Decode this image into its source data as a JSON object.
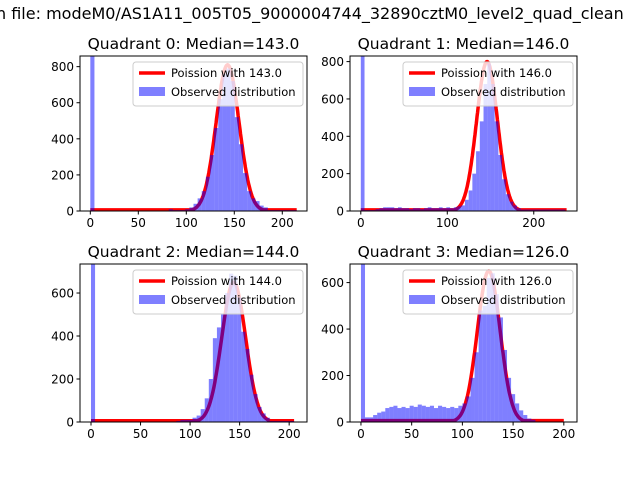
{
  "chart_data": {
    "type": "bar",
    "suptitle": "n file: modeM0/AS1A11_005T05_9000004744_32890cztM0_level2_quad_clean",
    "colors": {
      "observed": "#0000ff",
      "poisson": "#ff0000"
    },
    "legend": {
      "placement": "top-right",
      "poisson_prefix": "Poission with ",
      "observed_label": "Observed distribution"
    },
    "subplots": [
      {
        "title": "Quadrant 0: Median=143.0",
        "median": 143.0,
        "lambda": 143.0,
        "curve_peak": 810,
        "xlim": [
          -10.75,
          225.75
        ],
        "ylim": [
          0,
          859
        ],
        "xticks": [
          0,
          50,
          100,
          150,
          200
        ],
        "yticks": [
          0,
          200,
          400,
          600,
          800
        ],
        "bin_start": 0,
        "bin_width": 4.3,
        "curve_range": [
          0,
          215
        ],
        "counts": [
          1500,
          0,
          0,
          0,
          0,
          0,
          0,
          0,
          0,
          0,
          0,
          0,
          0,
          0,
          0,
          0,
          0,
          0,
          0,
          10,
          5,
          5,
          5,
          10,
          20,
          40,
          70,
          110,
          190,
          310,
          460,
          620,
          760,
          790,
          720,
          520,
          370,
          210,
          110,
          70,
          55,
          30,
          20,
          5,
          5,
          5,
          5,
          5,
          5,
          5
        ]
      },
      {
        "title": "Quadrant 1: Median=146.0",
        "median": 146.0,
        "lambda": 146.0,
        "curve_peak": 800,
        "xlim": [
          -12.5,
          250
        ],
        "ylim": [
          0,
          830
        ],
        "xticks": [
          0,
          100,
          200
        ],
        "yticks": [
          0,
          200,
          400,
          600,
          800
        ],
        "bin_start": 0,
        "bin_width": 4.3,
        "curve_range": [
          0,
          238
        ],
        "counts": [
          1500,
          5,
          5,
          5,
          10,
          15,
          20,
          20,
          20,
          15,
          20,
          15,
          15,
          10,
          15,
          15,
          10,
          15,
          20,
          15,
          15,
          20,
          15,
          20,
          15,
          20,
          25,
          30,
          60,
          110,
          200,
          320,
          480,
          680,
          790,
          680,
          480,
          300,
          170,
          90,
          50,
          30,
          15,
          8,
          8,
          8,
          8,
          8,
          8,
          8,
          8,
          8,
          8,
          8,
          8
        ]
      },
      {
        "title": "Quadrant 2: Median=144.0",
        "median": 144.0,
        "lambda": 144.0,
        "curve_peak": 650,
        "xlim": [
          -11.1,
          218
        ],
        "ylim": [
          0,
          735
        ],
        "xticks": [
          0,
          50,
          100,
          150,
          200
        ],
        "yticks": [
          0,
          200,
          400,
          600
        ],
        "bin_start": 0,
        "bin_width": 4.1,
        "curve_range": [
          0,
          205
        ],
        "counts": [
          1500,
          0,
          0,
          0,
          0,
          0,
          0,
          0,
          0,
          0,
          0,
          0,
          0,
          0,
          0,
          0,
          0,
          0,
          0,
          0,
          0,
          5,
          10,
          10,
          10,
          20,
          30,
          60,
          110,
          200,
          390,
          440,
          500,
          600,
          690,
          680,
          580,
          420,
          340,
          220,
          130,
          70,
          40,
          20,
          5,
          5,
          5,
          5,
          5,
          5
        ]
      },
      {
        "title": "Quadrant 3: Median=126.0",
        "median": 126.0,
        "lambda": 126.0,
        "curve_peak": 650,
        "xlim": [
          -10.8,
          213
        ],
        "ylim": [
          0,
          680
        ],
        "xticks": [
          0,
          50,
          100,
          150,
          200
        ],
        "yticks": [
          0,
          200,
          400,
          600
        ],
        "bin_start": 0,
        "bin_width": 4.0,
        "curve_range": [
          0,
          200
        ],
        "counts": [
          1500,
          20,
          20,
          30,
          40,
          45,
          60,
          65,
          70,
          60,
          65,
          60,
          70,
          65,
          75,
          70,
          65,
          70,
          60,
          70,
          65,
          60,
          65,
          60,
          70,
          80,
          110,
          190,
          300,
          480,
          500,
          620,
          640,
          550,
          450,
          310,
          190,
          120,
          80,
          50,
          30,
          15,
          10,
          0,
          0,
          0,
          0,
          0,
          0,
          0
        ]
      }
    ]
  }
}
